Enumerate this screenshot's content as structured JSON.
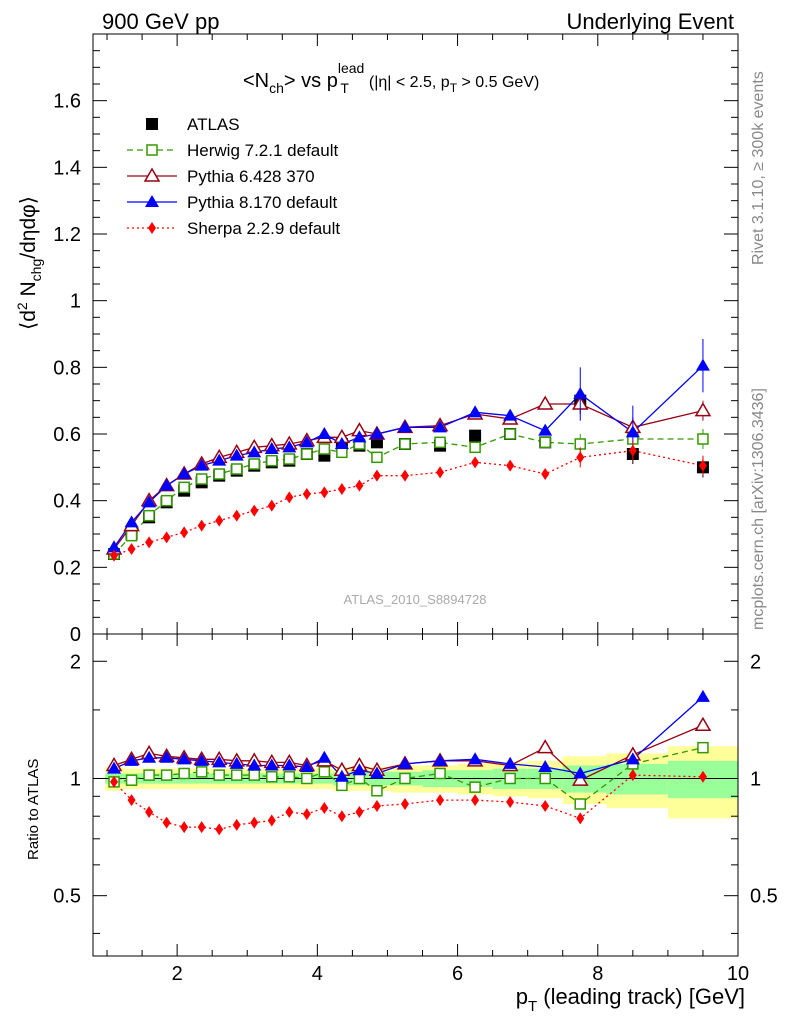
{
  "header": {
    "left": "900 GeV pp",
    "right": "Underlying Event"
  },
  "side": {
    "rivet": "Rivet 3.1.10, ≥ 300k events",
    "mcplots": "mcplots.cern.ch [arXiv:1306.3436]"
  },
  "title": {
    "main": "<N",
    "ch": "ch",
    "vs": "> vs p",
    "lead": "lead",
    "T": "T",
    "cuts": "(|η| < 2.5, p",
    "cutsT": "T",
    "cutsEnd": " > 0.5 GeV)"
  },
  "ylabel": {
    "open": "⟨d",
    "sup2": "2",
    "N": " N",
    "chg": "chg",
    "rest": "/dηdφ⟩"
  },
  "xlabel": {
    "p": "p",
    "T": "T",
    "rest": " (leading track) [GeV]"
  },
  "ratio_label": "Ratio to ATLAS",
  "analysis_id": "ATLAS_2010_S8894728",
  "colors": {
    "atlas": "#000000",
    "herwig": "#339900",
    "pythia6": "#990011",
    "pythia8": "#0000ff",
    "sherpa": "#ff0000",
    "band1": "#99ff99",
    "band2": "#ffff99"
  },
  "chart_data": {
    "type": "scatter",
    "x": [
      1.1,
      1.35,
      1.6,
      1.85,
      2.1,
      2.35,
      2.6,
      2.85,
      3.1,
      3.35,
      3.6,
      3.85,
      4.1,
      4.35,
      4.6,
      4.85,
      5.25,
      5.75,
      6.25,
      6.75,
      7.25,
      7.75,
      8.5,
      9.5
    ],
    "xlim": [
      0.8,
      10
    ],
    "xticks": [
      2,
      4,
      6,
      8,
      10
    ],
    "main": {
      "ylim": [
        0,
        1.8
      ],
      "yticks": [
        0,
        0.2,
        0.4,
        0.6,
        0.8,
        1,
        1.2,
        1.4,
        1.6
      ]
    },
    "ratio": {
      "ylim": [
        0.35,
        2.35
      ],
      "log": true,
      "yticks": [
        0.5,
        1,
        2
      ]
    },
    "series": [
      {
        "name": "ATLAS",
        "values": [
          0.24,
          0.3,
          0.35,
          0.395,
          0.43,
          0.455,
          0.475,
          0.49,
          0.505,
          0.515,
          0.52,
          0.54,
          0.535,
          0.57,
          0.565,
          0.575,
          0.57,
          0.565,
          0.595,
          0.6,
          0.575,
          0.7,
          0.54,
          0.5
        ]
      },
      {
        "name": "Herwig 7.2.1 default",
        "values": [
          0.24,
          0.295,
          0.355,
          0.4,
          0.44,
          0.465,
          0.48,
          0.495,
          0.51,
          0.52,
          0.525,
          0.54,
          0.555,
          0.545,
          0.57,
          0.53,
          0.57,
          0.575,
          0.56,
          0.6,
          0.575,
          0.57,
          0.585,
          0.585
        ]
      },
      {
        "name": "Pythia 6.428 370",
        "values": [
          0.255,
          0.325,
          0.4,
          0.445,
          0.48,
          0.51,
          0.53,
          0.545,
          0.56,
          0.565,
          0.57,
          0.58,
          0.59,
          0.59,
          0.61,
          0.6,
          0.62,
          0.625,
          0.66,
          0.645,
          0.69,
          0.69,
          0.62,
          0.67
        ]
      },
      {
        "name": "Pythia 8.170 default",
        "values": [
          0.26,
          0.335,
          0.395,
          0.445,
          0.48,
          0.505,
          0.52,
          0.535,
          0.545,
          0.555,
          0.56,
          0.575,
          0.6,
          0.57,
          0.59,
          0.6,
          0.62,
          0.62,
          0.665,
          0.655,
          0.61,
          0.72,
          0.605,
          0.805
        ]
      },
      {
        "name": "Sherpa 2.2.9 default",
        "values": [
          0.235,
          0.255,
          0.275,
          0.29,
          0.305,
          0.325,
          0.34,
          0.355,
          0.37,
          0.385,
          0.41,
          0.42,
          0.425,
          0.435,
          0.445,
          0.475,
          0.475,
          0.485,
          0.515,
          0.505,
          0.48,
          0.53,
          0.55,
          0.505
        ]
      }
    ],
    "ratios": [
      [
        1,
        1,
        1,
        1,
        1,
        1,
        1,
        1,
        1,
        1,
        1,
        1,
        1,
        1,
        1,
        1,
        1,
        1,
        1,
        1,
        1,
        1,
        1,
        1
      ],
      [
        0.98,
        0.99,
        1.02,
        1.02,
        1.03,
        1.04,
        1.02,
        1.02,
        1.02,
        1.01,
        1.01,
        1.0,
        1.04,
        0.96,
        1.0,
        0.93,
        1.0,
        1.03,
        0.95,
        1.0,
        1.0,
        0.86,
        1.09,
        1.2
      ],
      [
        1.08,
        1.12,
        1.16,
        1.14,
        1.13,
        1.12,
        1.12,
        1.11,
        1.11,
        1.1,
        1.1,
        1.08,
        1.11,
        1.05,
        1.08,
        1.05,
        1.09,
        1.11,
        1.11,
        1.08,
        1.2,
        0.99,
        1.15,
        1.37
      ],
      [
        1.06,
        1.11,
        1.13,
        1.13,
        1.12,
        1.11,
        1.1,
        1.09,
        1.08,
        1.08,
        1.08,
        1.07,
        1.13,
        1.01,
        1.05,
        1.03,
        1.09,
        1.11,
        1.12,
        1.09,
        1.07,
        1.03,
        1.12,
        1.62
      ],
      [
        0.98,
        0.88,
        0.82,
        0.77,
        0.75,
        0.75,
        0.74,
        0.76,
        0.77,
        0.78,
        0.82,
        0.81,
        0.84,
        0.8,
        0.82,
        0.85,
        0.86,
        0.88,
        0.88,
        0.87,
        0.85,
        0.79,
        1.02,
        1.01
      ]
    ]
  }
}
